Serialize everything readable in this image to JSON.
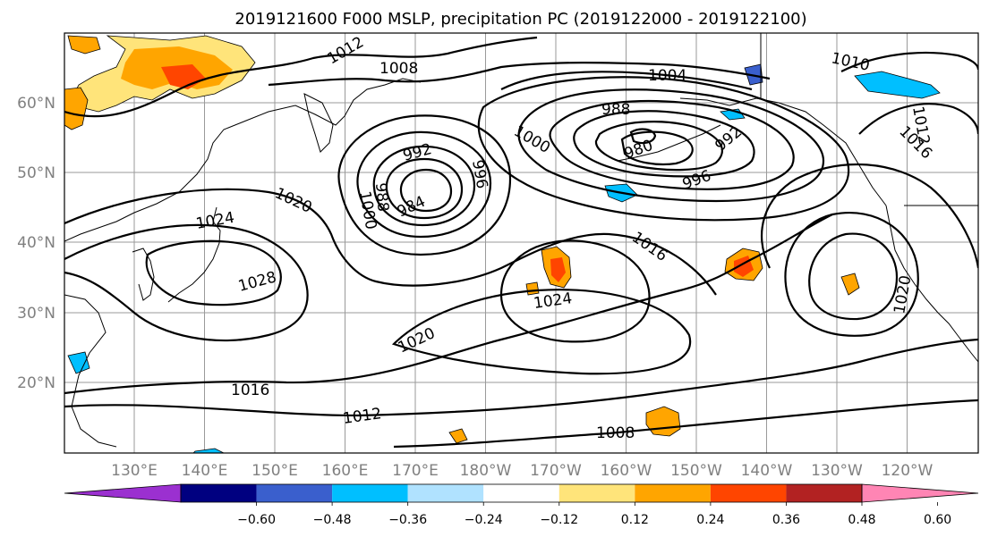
{
  "title": "2019121600 F000 MSLP, precipitation PC (2019122000 - 2019122100)",
  "lat_labels": [
    "60°N",
    "50°N",
    "40°N",
    "30°N",
    "20°N"
  ],
  "lon_labels": [
    "130°E",
    "140°E",
    "150°E",
    "160°E",
    "170°E",
    "180°W",
    "170°W",
    "160°W",
    "150°W",
    "140°W",
    "130°W",
    "120°W"
  ],
  "colorbar": {
    "ticks": [
      "−0.60",
      "−0.48",
      "−0.36",
      "−0.24",
      "−0.12",
      "0.12",
      "0.24",
      "0.36",
      "0.48",
      "0.60"
    ],
    "colors": [
      "#9b30d0",
      "#000080",
      "#3a5fcd",
      "#00bfff",
      "#b0e2ff",
      "#ffffff",
      "#ffe47a",
      "#ffa500",
      "#ff4500",
      "#b22222",
      "#ff85b4"
    ]
  },
  "contour_labels": [
    "1012",
    "1008",
    "1004",
    "1010",
    "1012",
    "1016",
    "1016",
    "1000",
    "988",
    "992",
    "996",
    "980",
    "984",
    "992",
    "996",
    "1000",
    "988",
    "1020",
    "1024",
    "1028",
    "1016",
    "1024",
    "1020",
    "1016",
    "1012",
    "1008",
    "1020"
  ]
}
